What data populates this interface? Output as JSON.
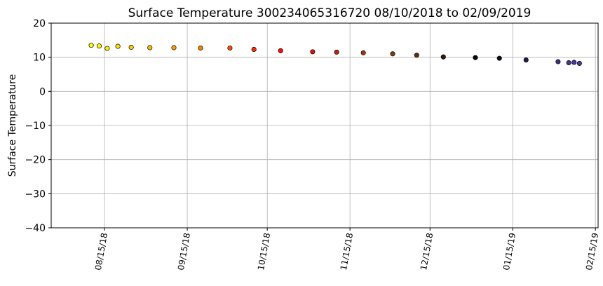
{
  "chart_data": {
    "type": "scatter",
    "title": "Surface Temperature 300234065316720  08/10/2018 to 02/09/2019",
    "xlabel": "",
    "ylabel": "Surface Temperature",
    "x_range": [
      "2018-07-26",
      "2019-02-16"
    ],
    "ylim": [
      -40,
      20
    ],
    "yticks": [
      20,
      10,
      0,
      -10,
      -20,
      -30,
      -40
    ],
    "ytick_labels": [
      "20",
      "10",
      "0",
      "−10",
      "−20",
      "−30",
      "−40"
    ],
    "xticks": [
      "2018-08-15",
      "2018-09-15",
      "2018-10-15",
      "2018-11-15",
      "2018-12-15",
      "2019-01-15",
      "2019-02-15"
    ],
    "xtick_labels": [
      "08/15/18",
      "09/15/18",
      "10/15/18",
      "11/15/18",
      "12/15/18",
      "01/15/19",
      "02/15/19"
    ],
    "grid": true,
    "color_gradient": [
      "#ffff00",
      "#ff8c00",
      "#ff0000",
      "#8b4513",
      "#000000",
      "#4b3ca0"
    ],
    "marker_edge_color": "#000000",
    "x": [
      "2018-08-10",
      "2018-08-13",
      "2018-08-16",
      "2018-08-20",
      "2018-08-25",
      "2018-09-01",
      "2018-09-10",
      "2018-09-20",
      "2018-10-01",
      "2018-10-10",
      "2018-10-20",
      "2018-11-01",
      "2018-11-10",
      "2018-11-20",
      "2018-12-01",
      "2018-12-10",
      "2018-12-20",
      "2019-01-01",
      "2019-01-10",
      "2019-01-20",
      "2019-02-01",
      "2019-02-05",
      "2019-02-07",
      "2019-02-09"
    ],
    "y": [
      13.5,
      13.3,
      12.6,
      13.2,
      12.9,
      12.8,
      12.8,
      12.7,
      12.7,
      12.3,
      11.9,
      11.6,
      11.5,
      11.3,
      11.0,
      10.6,
      10.1,
      9.9,
      9.7,
      9.2,
      8.7,
      8.4,
      8.5,
      8.2
    ]
  }
}
